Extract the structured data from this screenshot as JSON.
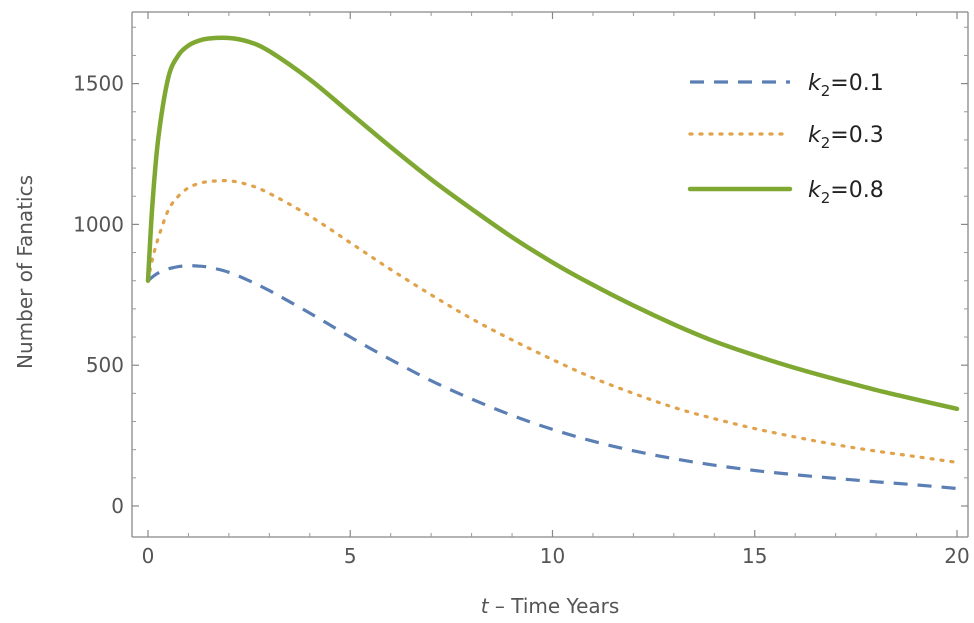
{
  "chart_data": {
    "type": "line",
    "title": "",
    "xlabel": {
      "var": "t",
      "rest": " – Time Years"
    },
    "ylabel": "Number of Fanatics",
    "xlim": [
      0,
      20
    ],
    "ylim": [
      -80,
      1740
    ],
    "xticks": [
      0,
      5,
      10,
      15,
      20
    ],
    "yticks": [
      0,
      500,
      1000,
      1500
    ],
    "grid": false,
    "legend_position": "top-right",
    "x": [
      0,
      0.1,
      0.25,
      0.5,
      0.75,
      1,
      1.25,
      1.5,
      2,
      2.5,
      3,
      4,
      5,
      6,
      7,
      8,
      9,
      10,
      11,
      12,
      13,
      14,
      15,
      16,
      17,
      18,
      19,
      20
    ],
    "series": [
      {
        "name": "k2=0.1",
        "label_base": "k",
        "label_sub": "2",
        "label_rest": "=0.1",
        "color": "#5b7fb5",
        "style": "dashed",
        "values": [
          800,
          812,
          827,
          842,
          850,
          853,
          852,
          848,
          830,
          800,
          765,
          685,
          600,
          520,
          445,
          380,
          322,
          272,
          230,
          196,
          168,
          145,
          126,
          111,
          98,
          86,
          75,
          62
        ]
      },
      {
        "name": "k2=0.3",
        "label_base": "k",
        "label_sub": "2",
        "label_rest": "=0.3",
        "color": "#e0a24a",
        "style": "dotted",
        "values": [
          800,
          870,
          950,
          1050,
          1100,
          1130,
          1145,
          1152,
          1155,
          1140,
          1110,
          1030,
          935,
          840,
          750,
          665,
          590,
          520,
          455,
          400,
          350,
          310,
          275,
          245,
          218,
          195,
          175,
          155
        ]
      },
      {
        "name": "k2=0.8",
        "label_base": "k",
        "label_sub": "2",
        "label_rest": "=0.8",
        "color": "#7fa832",
        "style": "solid",
        "values": [
          800,
          1050,
          1300,
          1520,
          1600,
          1635,
          1652,
          1660,
          1662,
          1648,
          1615,
          1515,
          1395,
          1275,
          1160,
          1055,
          955,
          865,
          785,
          712,
          645,
          585,
          535,
          490,
          450,
          412,
          378,
          345
        ]
      }
    ]
  }
}
